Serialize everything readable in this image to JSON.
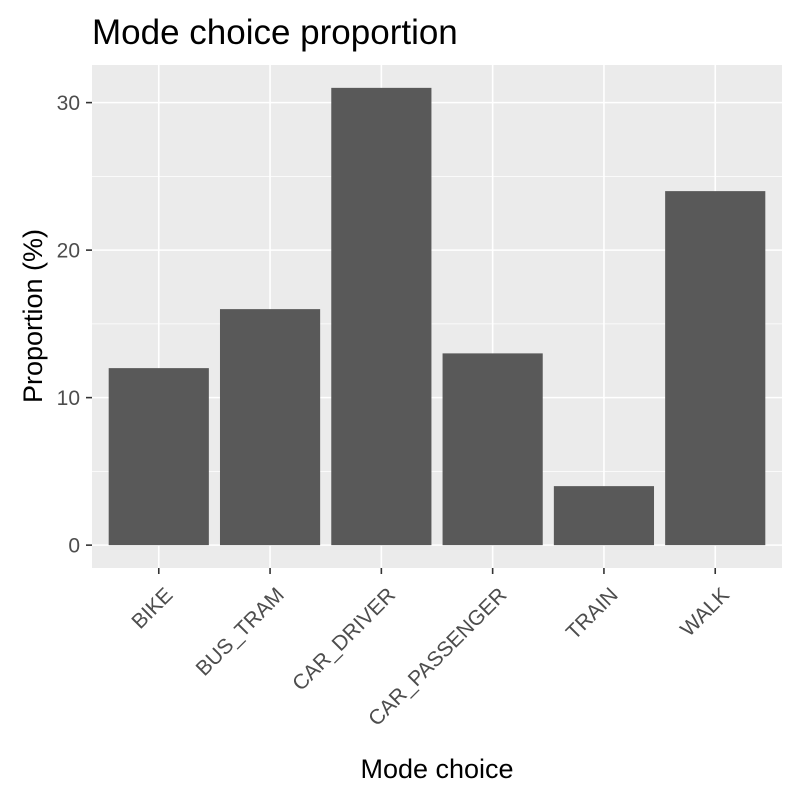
{
  "chart_data": {
    "type": "bar",
    "title": "Mode choice proportion",
    "xlabel": "Mode choice",
    "ylabel": "Proportion (%)",
    "categories": [
      "BIKE",
      "BUS_TRAM",
      "CAR_DRIVER",
      "CAR_PASSENGER",
      "TRAIN",
      "WALK"
    ],
    "values": [
      12,
      16,
      31,
      13,
      4,
      24
    ],
    "ylim": [
      -1.55,
      32.55
    ],
    "yticks": [
      0,
      10,
      20,
      30
    ],
    "ytick_labels": [
      "0",
      "10",
      "20",
      "30"
    ],
    "grid": true,
    "legend": "none",
    "colors": {
      "bar": "#595959",
      "panel_background": "#ebebeb",
      "grid": "#ffffff",
      "tick_text": "#4d4d4d",
      "tick_mark": "#333333",
      "text": "#000000"
    }
  }
}
